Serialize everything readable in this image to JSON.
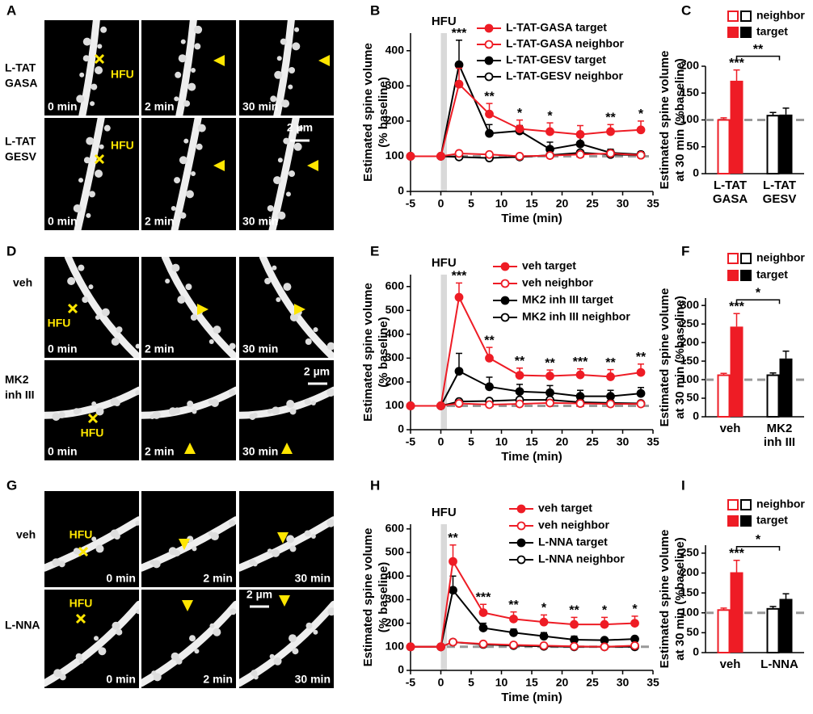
{
  "image_panels": [
    {
      "panel": "A",
      "rows": [
        {
          "label": [
            "L-TAT",
            "GASA"
          ],
          "stim": "HFU",
          "times": [
            "0 min",
            "2 min",
            "30 min"
          ]
        },
        {
          "label": [
            "L-TAT",
            "GESV"
          ],
          "stim": "HFU",
          "times": [
            "0 min",
            "2 min",
            "30 min"
          ]
        }
      ],
      "scale_bar": "2 µm"
    },
    {
      "panel": "D",
      "rows": [
        {
          "label": [
            "veh"
          ],
          "stim": "HFU",
          "times": [
            "0 min",
            "2 min",
            "30 min"
          ]
        },
        {
          "label": [
            "MK2",
            "inh III"
          ],
          "stim": "HFU",
          "times": [
            "0 min",
            "2 min",
            "30 min"
          ]
        }
      ],
      "scale_bar": "2 µm"
    },
    {
      "panel": "G",
      "rows": [
        {
          "label": [
            "veh"
          ],
          "stim": "HFU",
          "times": [
            "0 min",
            "2 min",
            "30 min"
          ]
        },
        {
          "label": [
            "L-NNA"
          ],
          "stim": "HFU",
          "times": [
            "0 min",
            "2 min",
            "30 min"
          ]
        }
      ],
      "scale_bar": "2 µm"
    }
  ],
  "chart_data": [
    {
      "type": "line",
      "panel": "B",
      "ylabel": [
        "Estimated spine volume",
        "(% baseline)"
      ],
      "xlabel": "Time (min)",
      "hfu": {
        "label": "HFU",
        "x": [
          0,
          1
        ]
      },
      "baseline": 100,
      "x": [
        -5,
        0,
        3,
        8,
        13,
        18,
        23,
        28,
        33
      ],
      "xlim": [
        -5,
        35
      ],
      "xticks": [
        -5,
        0,
        5,
        10,
        15,
        20,
        25,
        30,
        35
      ],
      "ylim": [
        0,
        450
      ],
      "yticks": [
        0,
        100,
        200,
        300,
        400
      ],
      "series": [
        {
          "name": "L-TAT-GASA target",
          "color": "#ee1c25",
          "marker": "filled",
          "values": [
            100,
            100,
            305,
            220,
            178,
            170,
            162,
            170,
            175
          ],
          "errors": [
            0,
            0,
            45,
            30,
            25,
            25,
            25,
            20,
            25
          ]
        },
        {
          "name": "L-TAT-GASA neighbor",
          "color": "#ee1c25",
          "marker": "open",
          "values": [
            100,
            100,
            108,
            105,
            100,
            102,
            105,
            108,
            103
          ],
          "errors": [
            0,
            0,
            5,
            4,
            4,
            4,
            5,
            5,
            5
          ]
        },
        {
          "name": "L-TAT-GESV target",
          "color": "#000000",
          "marker": "filled",
          "values": [
            100,
            100,
            360,
            165,
            172,
            120,
            135,
            110,
            105
          ],
          "errors": [
            0,
            0,
            70,
            25,
            15,
            20,
            20,
            10,
            8
          ]
        },
        {
          "name": "L-TAT-GESV neighbor",
          "color": "#000000",
          "marker": "open",
          "values": [
            100,
            100,
            98,
            95,
            98,
            103,
            110,
            105,
            103
          ],
          "errors": [
            0,
            0,
            4,
            4,
            4,
            4,
            5,
            5,
            5
          ]
        }
      ],
      "significance": [
        null,
        null,
        "***",
        "**",
        "*",
        "*",
        null,
        "**",
        "*"
      ]
    },
    {
      "type": "bar",
      "panel": "C",
      "ylabel": [
        "Estimated spine volume",
        "at 30 min (%baseline)"
      ],
      "categories": [
        [
          "L-TAT",
          "GASA"
        ],
        [
          "L-TAT",
          "GESV"
        ]
      ],
      "colors": [
        "#ee1c25",
        "#000000"
      ],
      "baseline": 100,
      "ylim": [
        0,
        200
      ],
      "yticks": [
        0,
        50,
        100,
        150,
        200
      ],
      "series": [
        {
          "name": "neighbor",
          "fill": "open",
          "values": [
            100,
            108
          ],
          "errors": [
            4,
            6
          ]
        },
        {
          "name": "target",
          "fill": "solid",
          "values": [
            173,
            110
          ],
          "errors": [
            20,
            12
          ]
        }
      ],
      "target_significance": [
        "***",
        null
      ],
      "comparison_label": "**"
    },
    {
      "type": "line",
      "panel": "E",
      "ylabel": [
        "Estimated spine volume",
        "(% baseline)"
      ],
      "xlabel": "Time (min)",
      "hfu": {
        "label": "HFU",
        "x": [
          0,
          1
        ]
      },
      "baseline": 100,
      "x": [
        -5,
        0,
        3,
        8,
        13,
        18,
        23,
        28,
        33
      ],
      "xlim": [
        -5,
        35
      ],
      "xticks": [
        -5,
        0,
        5,
        10,
        15,
        20,
        25,
        30,
        35
      ],
      "ylim": [
        0,
        650
      ],
      "yticks": [
        0,
        100,
        200,
        300,
        400,
        500,
        600
      ],
      "series": [
        {
          "name": "veh target",
          "color": "#ee1c25",
          "marker": "filled",
          "values": [
            100,
            100,
            555,
            300,
            228,
            225,
            230,
            222,
            240
          ],
          "errors": [
            0,
            0,
            60,
            45,
            30,
            25,
            25,
            30,
            35
          ]
        },
        {
          "name": "veh neighbor",
          "color": "#ee1c25",
          "marker": "open",
          "values": [
            100,
            100,
            110,
            105,
            108,
            112,
            110,
            108,
            108
          ],
          "errors": [
            0,
            0,
            6,
            5,
            5,
            6,
            6,
            5,
            5
          ]
        },
        {
          "name": "MK2 inh III target",
          "color": "#000000",
          "marker": "filled",
          "values": [
            100,
            100,
            245,
            180,
            160,
            155,
            140,
            140,
            152
          ],
          "errors": [
            0,
            0,
            75,
            40,
            30,
            30,
            25,
            25,
            25
          ]
        },
        {
          "name": "MK2 inh III neighbor",
          "color": "#000000",
          "marker": "open",
          "values": [
            100,
            100,
            118,
            120,
            125,
            125,
            115,
            112,
            110
          ],
          "errors": [
            0,
            0,
            8,
            8,
            8,
            8,
            7,
            7,
            6
          ]
        }
      ],
      "significance": [
        null,
        null,
        "***",
        "**",
        "**",
        "**",
        "***",
        "**",
        "**"
      ]
    },
    {
      "type": "bar",
      "panel": "F",
      "ylabel": [
        "Estimated spine volume",
        "at 30 min (%baseline)"
      ],
      "categories": [
        [
          "veh"
        ],
        [
          "MK2",
          "inh III"
        ]
      ],
      "colors": [
        "#ee1c25",
        "#000000"
      ],
      "baseline": 100,
      "ylim": [
        0,
        320
      ],
      "yticks": [
        0,
        50,
        100,
        150,
        200,
        250,
        300
      ],
      "series": [
        {
          "name": "neighbor",
          "fill": "open",
          "values": [
            112,
            112
          ],
          "errors": [
            5,
            6
          ]
        },
        {
          "name": "target",
          "fill": "solid",
          "values": [
            243,
            157
          ],
          "errors": [
            35,
            20
          ]
        }
      ],
      "target_significance": [
        "***",
        null
      ],
      "comparison_label": "*"
    },
    {
      "type": "line",
      "panel": "H",
      "ylabel": [
        "Estimated spine volume",
        "(% baseline)"
      ],
      "xlabel": "Time (min)",
      "hfu": {
        "label": "HFU",
        "x": [
          0,
          1
        ]
      },
      "baseline": 100,
      "x": [
        -5,
        0,
        2,
        7,
        12,
        17,
        22,
        27,
        32
      ],
      "xlim": [
        -5,
        35
      ],
      "xticks": [
        -5,
        0,
        5,
        10,
        15,
        20,
        25,
        30,
        35
      ],
      "ylim": [
        0,
        620
      ],
      "yticks": [
        0,
        100,
        200,
        300,
        400,
        500,
        600
      ],
      "series": [
        {
          "name": "veh target",
          "color": "#ee1c25",
          "marker": "filled",
          "values": [
            100,
            100,
            462,
            245,
            218,
            205,
            195,
            195,
            200
          ],
          "errors": [
            0,
            0,
            70,
            35,
            30,
            30,
            30,
            30,
            30
          ]
        },
        {
          "name": "veh neighbor",
          "color": "#ee1c25",
          "marker": "open",
          "values": [
            100,
            100,
            120,
            112,
            108,
            105,
            102,
            100,
            105
          ],
          "errors": [
            0,
            0,
            6,
            5,
            5,
            5,
            5,
            5,
            5
          ]
        },
        {
          "name": "L-NNA target",
          "color": "#000000",
          "marker": "filled",
          "values": [
            100,
            100,
            340,
            180,
            160,
            145,
            130,
            128,
            133
          ],
          "errors": [
            0,
            0,
            60,
            20,
            15,
            15,
            15,
            10,
            10
          ]
        },
        {
          "name": "L-NNA neighbor",
          "color": "#000000",
          "marker": "open",
          "values": [
            100,
            100,
            120,
            110,
            105,
            102,
            100,
            100,
            100
          ],
          "errors": [
            0,
            0,
            6,
            5,
            5,
            5,
            5,
            5,
            5
          ]
        }
      ],
      "significance": [
        null,
        null,
        "**",
        "***",
        "**",
        "*",
        "**",
        "*",
        "*"
      ]
    },
    {
      "type": "bar",
      "panel": "I",
      "ylabel": [
        "Estimated spine volume",
        "at 30 min (%baseline)"
      ],
      "categories": [
        [
          "veh"
        ],
        [
          "L-NNA"
        ]
      ],
      "colors": [
        "#ee1c25",
        "#000000"
      ],
      "baseline": 100,
      "ylim": [
        0,
        270
      ],
      "yticks": [
        0,
        50,
        100,
        150,
        200,
        250
      ],
      "series": [
        {
          "name": "neighbor",
          "fill": "open",
          "values": [
            107,
            110
          ],
          "errors": [
            5,
            6
          ]
        },
        {
          "name": "target",
          "fill": "solid",
          "values": [
            202,
            135
          ],
          "errors": [
            30,
            13
          ]
        }
      ],
      "target_significance": [
        "***",
        null
      ],
      "comparison_label": "*"
    }
  ]
}
